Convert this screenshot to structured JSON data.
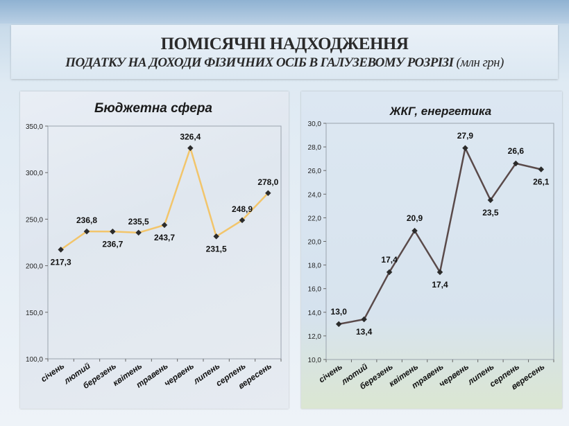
{
  "header": {
    "title": "ПОМІСЯЧНІ НАДХОДЖЕННЯ",
    "subtitle": "ПОДАТКУ НА ДОХОДИ ФІЗИЧНИХ ОСІБ В ГАЛУЗЕВОМУ РОЗРІЗІ",
    "unit": "(млн грн)"
  },
  "colors": {
    "left_line": "#f2c56b",
    "right_line": "#5a4a4a",
    "marker": "#2b2b2b"
  },
  "chart_data": [
    {
      "type": "line",
      "title": "Бюджетна сфера",
      "categories": [
        "січень",
        "лютий",
        "березень",
        "квітень",
        "травень",
        "червень",
        "липень",
        "серпень",
        "вересень"
      ],
      "values": [
        217.3,
        236.8,
        236.7,
        235.5,
        243.7,
        326.4,
        231.5,
        248.9,
        278.0
      ],
      "value_labels": [
        "217,3",
        "236,8",
        "236,7",
        "235,5",
        "243,7",
        "326,4",
        "231,5",
        "248,9",
        "278,0"
      ],
      "ylim": [
        100,
        350
      ],
      "yticks": [
        "100,0",
        "150,0",
        "200,0",
        "250,0",
        "300,0",
        "350,0"
      ],
      "xlabel": "",
      "ylabel": ""
    },
    {
      "type": "line",
      "title": "ЖКГ, енергетика",
      "categories": [
        "січень",
        "лютий",
        "березень",
        "квітень",
        "травень",
        "червень",
        "липень",
        "серпень",
        "вересень"
      ],
      "values": [
        13.0,
        13.4,
        17.4,
        20.9,
        17.4,
        27.9,
        23.5,
        26.6,
        26.1
      ],
      "value_labels": [
        "13,0",
        "13,4",
        "17,4",
        "20,9",
        "17,4",
        "27,9",
        "23,5",
        "26,6",
        "26,1"
      ],
      "ylim": [
        10,
        30
      ],
      "yticks": [
        "10,0",
        "12,0",
        "14,0",
        "16,0",
        "18,0",
        "20,0",
        "22,0",
        "24,0",
        "26,0",
        "28,0",
        "30,0"
      ],
      "xlabel": "",
      "ylabel": ""
    }
  ]
}
